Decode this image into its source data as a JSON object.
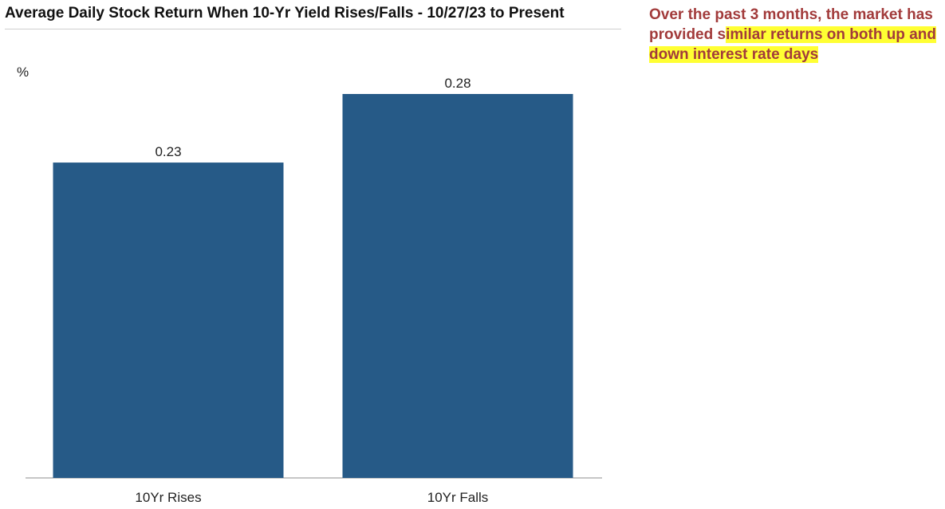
{
  "chart_data": {
    "type": "bar",
    "title": "Average Daily Stock Return When 10-Yr Yield Rises/Falls - 10/27/23 to Present",
    "ylabel": "%",
    "categories": [
      "10Yr Rises",
      "10Yr Falls"
    ],
    "values": [
      0.23,
      0.28
    ],
    "value_labels": [
      "0.23",
      "0.28"
    ],
    "ylim": [
      0,
      0.3
    ],
    "grid": false,
    "legend": "none",
    "bar_color": "#265a87"
  },
  "callout": {
    "text_before_highlight": "Over the past 3 months, the market has provided s",
    "text_highlighted": "imilar returns on both up and down interest rate days",
    "color": "#a23b3b",
    "highlight_color": "#ffff33"
  }
}
